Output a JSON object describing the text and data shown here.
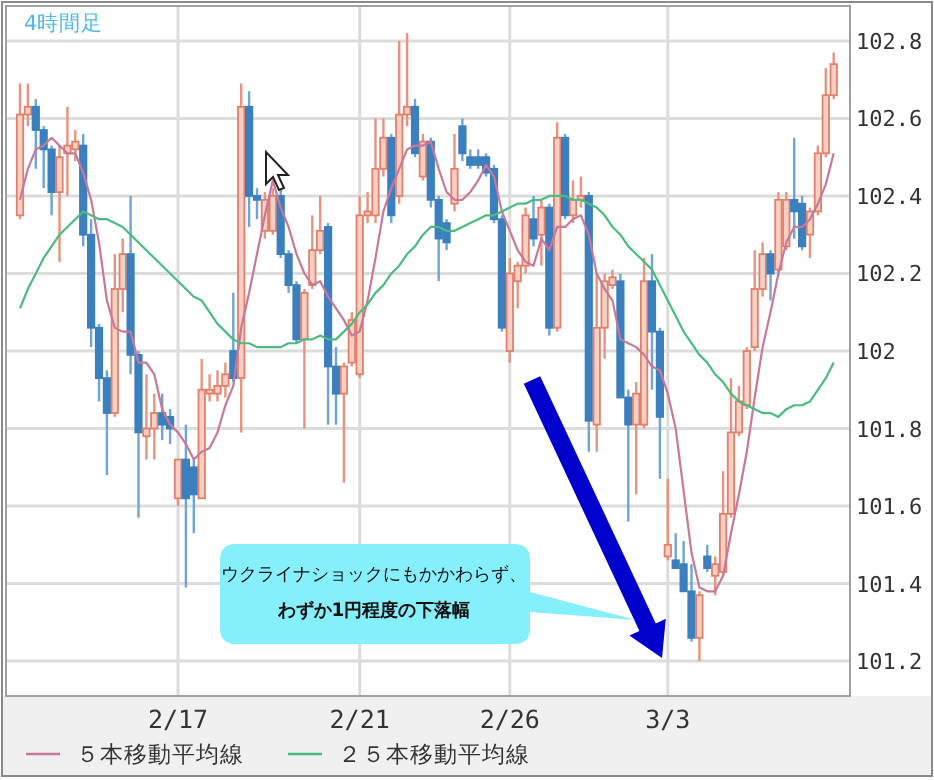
{
  "chart_data": {
    "type": "candlestick",
    "title": "4時間足",
    "categories": [
      null,
      null,
      null,
      null,
      null,
      null,
      null,
      null,
      null,
      null,
      null,
      null,
      null,
      null,
      null,
      null,
      null,
      null,
      null,
      null,
      "2/17",
      null,
      null,
      null,
      null,
      null,
      null,
      null,
      null,
      null,
      null,
      null,
      null,
      null,
      null,
      null,
      null,
      null,
      null,
      null,
      null,
      null,
      null,
      "2/21",
      null,
      null,
      null,
      null,
      null,
      null,
      null,
      null,
      null,
      null,
      null,
      null,
      null,
      null,
      null,
      null,
      null,
      null,
      "2/26",
      null,
      null,
      null,
      null,
      null,
      null,
      null,
      null,
      null,
      null,
      null,
      null,
      null,
      null,
      null,
      null,
      null,
      null,
      null,
      "3/3",
      null,
      null,
      null,
      null,
      null,
      null,
      null,
      null,
      null,
      null,
      null,
      null,
      null,
      null,
      null,
      null,
      null,
      null,
      null,
      null,
      null
    ],
    "ohlc": [
      [
        102.35,
        102.69,
        102.34,
        102.61
      ],
      [
        102.61,
        102.69,
        102.58,
        102.63
      ],
      [
        102.63,
        102.65,
        102.47,
        102.57
      ],
      [
        102.57,
        102.58,
        102.42,
        102.52
      ],
      [
        102.52,
        102.53,
        102.35,
        102.41
      ],
      [
        102.41,
        102.53,
        102.23,
        102.5
      ],
      [
        102.51,
        102.63,
        102.4,
        102.53
      ],
      [
        102.52,
        102.57,
        102.49,
        102.54
      ],
      [
        102.53,
        102.56,
        102.27,
        102.3
      ],
      [
        102.3,
        102.34,
        102.01,
        102.06
      ],
      [
        102.06,
        102.07,
        101.87,
        101.93
      ],
      [
        101.93,
        101.95,
        101.68,
        101.84
      ],
      [
        101.84,
        102.25,
        101.83,
        102.16
      ],
      [
        102.16,
        102.29,
        102.1,
        102.25
      ],
      [
        102.25,
        102.4,
        101.94,
        101.99
      ],
      [
        101.99,
        102.0,
        101.57,
        101.79
      ],
      [
        101.78,
        101.94,
        101.72,
        101.8
      ],
      [
        101.8,
        101.89,
        101.72,
        101.84
      ],
      [
        101.84,
        101.89,
        101.77,
        101.81
      ],
      [
        101.83,
        101.85,
        101.76,
        101.8
      ],
      [
        101.62,
        101.72,
        101.6,
        101.72
      ],
      [
        101.72,
        101.81,
        101.39,
        101.62
      ],
      [
        101.7,
        101.72,
        101.53,
        101.63
      ],
      [
        101.62,
        101.98,
        101.62,
        101.9
      ],
      [
        101.89,
        101.94,
        101.87,
        101.9
      ],
      [
        101.89,
        101.95,
        101.87,
        101.91
      ],
      [
        101.91,
        101.97,
        101.88,
        101.94
      ],
      [
        102.0,
        102.15,
        101.92,
        101.93
      ],
      [
        101.93,
        102.69,
        101.79,
        102.63
      ],
      [
        102.63,
        102.67,
        102.32,
        102.4
      ],
      [
        102.4,
        102.42,
        102.34,
        102.39
      ],
      [
        102.31,
        102.41,
        102.29,
        102.39
      ],
      [
        102.31,
        102.42,
        102.3,
        102.4
      ],
      [
        102.4,
        102.42,
        102.24,
        102.25
      ],
      [
        102.25,
        102.26,
        102.15,
        102.17
      ],
      [
        102.17,
        102.18,
        102.02,
        102.03
      ],
      [
        102.03,
        102.16,
        101.8,
        102.15
      ],
      [
        102.17,
        102.35,
        102.16,
        102.26
      ],
      [
        102.26,
        102.4,
        102.25,
        102.31
      ],
      [
        102.32,
        102.33,
        101.81,
        101.96
      ],
      [
        101.96,
        102.01,
        101.81,
        101.89
      ],
      [
        101.89,
        101.97,
        101.66,
        101.96
      ],
      [
        101.97,
        102.1,
        101.96,
        102.08
      ],
      [
        101.94,
        102.4,
        101.93,
        102.35
      ],
      [
        102.35,
        102.41,
        102.33,
        102.36
      ],
      [
        102.35,
        102.6,
        102.33,
        102.47
      ],
      [
        102.47,
        102.6,
        102.45,
        102.55
      ],
      [
        102.55,
        102.56,
        102.33,
        102.35
      ],
      [
        102.4,
        102.8,
        102.38,
        102.61
      ],
      [
        102.61,
        102.82,
        102.58,
        102.63
      ],
      [
        102.63,
        102.65,
        102.5,
        102.51
      ],
      [
        102.45,
        102.56,
        102.44,
        102.54
      ],
      [
        102.54,
        102.55,
        102.37,
        102.39
      ],
      [
        102.39,
        102.4,
        102.18,
        102.29
      ],
      [
        102.33,
        102.34,
        102.26,
        102.28
      ],
      [
        102.38,
        102.56,
        102.36,
        102.47
      ],
      [
        102.58,
        102.6,
        102.49,
        102.51
      ],
      [
        102.5,
        102.52,
        102.47,
        102.48
      ],
      [
        102.5,
        102.52,
        102.47,
        102.48
      ],
      [
        102.5,
        102.51,
        102.45,
        102.46
      ],
      [
        102.47,
        102.48,
        102.33,
        102.34
      ],
      [
        102.34,
        102.35,
        102.05,
        102.06
      ],
      [
        102.0,
        102.24,
        101.97,
        102.2
      ],
      [
        102.18,
        102.23,
        102.11,
        102.22
      ],
      [
        102.22,
        102.37,
        102.2,
        102.35
      ],
      [
        102.34,
        102.4,
        102.27,
        102.29
      ],
      [
        102.3,
        102.39,
        102.22,
        102.37
      ],
      [
        102.37,
        102.38,
        102.04,
        102.06
      ],
      [
        102.06,
        102.59,
        102.05,
        102.55
      ],
      [
        102.55,
        102.56,
        102.34,
        102.35
      ],
      [
        102.35,
        102.44,
        102.33,
        102.39
      ],
      [
        102.39,
        102.45,
        102.37,
        102.4
      ],
      [
        102.4,
        102.41,
        101.74,
        101.82
      ],
      [
        101.81,
        102.2,
        101.74,
        102.06
      ],
      [
        102.06,
        102.2,
        101.98,
        102.18
      ],
      [
        102.17,
        102.21,
        102.16,
        102.19
      ],
      [
        102.18,
        102.2,
        101.88,
        101.88
      ],
      [
        101.88,
        101.9,
        101.56,
        101.81
      ],
      [
        101.81,
        101.92,
        101.63,
        101.89
      ],
      [
        101.81,
        102.24,
        101.8,
        102.18
      ],
      [
        102.18,
        102.25,
        101.9,
        102.05
      ],
      [
        102.05,
        102.06,
        101.67,
        101.83
      ],
      [
        101.47,
        101.67,
        101.46,
        101.5
      ],
      [
        101.46,
        101.53,
        101.44,
        101.44
      ],
      [
        101.45,
        101.51,
        101.38,
        101.38
      ],
      [
        101.38,
        101.45,
        101.25,
        101.26
      ],
      [
        101.26,
        101.38,
        101.2,
        101.37
      ],
      [
        101.47,
        101.5,
        101.43,
        101.44
      ],
      [
        101.42,
        101.47,
        101.37,
        101.45
      ],
      [
        101.43,
        101.69,
        101.42,
        101.58
      ],
      [
        101.58,
        101.93,
        101.57,
        101.79
      ],
      [
        101.79,
        101.91,
        101.78,
        101.87
      ],
      [
        101.86,
        102.01,
        101.85,
        102.0
      ],
      [
        102.01,
        102.26,
        102.0,
        102.16
      ],
      [
        102.16,
        102.28,
        102.14,
        102.25
      ],
      [
        102.25,
        102.26,
        102.13,
        102.2
      ],
      [
        102.21,
        102.41,
        102.2,
        102.39
      ],
      [
        102.27,
        102.41,
        102.26,
        102.39
      ],
      [
        102.39,
        102.55,
        102.29,
        102.36
      ],
      [
        102.38,
        102.4,
        102.26,
        102.27
      ],
      [
        102.3,
        102.37,
        102.24,
        102.36
      ],
      [
        102.36,
        102.53,
        102.35,
        102.51
      ],
      [
        102.51,
        102.73,
        102.5,
        102.66
      ],
      [
        102.66,
        102.77,
        102.65,
        102.74
      ]
    ],
    "series": [
      {
        "type": "line",
        "name": "５本移動平均線",
        "color": "#c8789a",
        "values": [
          102.39,
          102.47,
          102.52,
          102.53,
          102.55,
          102.53,
          102.51,
          102.51,
          102.46,
          102.39,
          102.28,
          102.13,
          102.06,
          102.05,
          102.05,
          101.97,
          101.97,
          101.94,
          101.85,
          101.81,
          101.79,
          101.76,
          101.72,
          101.74,
          101.75,
          101.79,
          101.86,
          101.91,
          102.06,
          102.15,
          102.25,
          102.35,
          102.44,
          102.37,
          102.32,
          102.25,
          102.2,
          102.17,
          102.18,
          102.14,
          102.11,
          102.08,
          102.04,
          102.05,
          102.13,
          102.24,
          102.36,
          102.42,
          102.47,
          102.52,
          102.53,
          102.53,
          102.54,
          102.47,
          102.41,
          102.39,
          102.39,
          102.41,
          102.44,
          102.48,
          102.45,
          102.36,
          102.31,
          102.26,
          102.23,
          102.22,
          102.29,
          102.26,
          102.32,
          102.32,
          102.34,
          102.35,
          102.3,
          102.2,
          102.16,
          102.13,
          102.03,
          102.02,
          102.01,
          101.99,
          101.96,
          101.95,
          101.89,
          101.8,
          101.64,
          101.48,
          101.39,
          101.38,
          101.38,
          101.42,
          101.53,
          101.63,
          101.74,
          101.88,
          102.01,
          102.1,
          102.2,
          102.28,
          102.32,
          102.32,
          102.34,
          102.38,
          102.43,
          102.51
        ]
      },
      {
        "type": "line",
        "name": "２５本移動平均線",
        "color": "#4cbb7f",
        "values": [
          102.11,
          102.16,
          102.2,
          102.24,
          102.27,
          102.3,
          102.32,
          102.34,
          102.36,
          102.35,
          102.34,
          102.34,
          102.33,
          102.32,
          102.3,
          102.28,
          102.26,
          102.24,
          102.22,
          102.2,
          102.18,
          102.16,
          102.14,
          102.13,
          102.1,
          102.07,
          102.05,
          102.03,
          102.02,
          102.02,
          102.01,
          102.01,
          102.01,
          102.01,
          102.02,
          102.02,
          102.03,
          102.03,
          102.04,
          102.03,
          102.03,
          102.05,
          102.07,
          102.1,
          102.12,
          102.15,
          102.17,
          102.2,
          102.22,
          102.25,
          102.27,
          102.3,
          102.32,
          102.32,
          102.31,
          102.31,
          102.32,
          102.33,
          102.34,
          102.35,
          102.35,
          102.36,
          102.37,
          102.38,
          102.38,
          102.39,
          102.39,
          102.4,
          102.4,
          102.4,
          102.39,
          102.39,
          102.38,
          102.37,
          102.35,
          102.32,
          102.3,
          102.27,
          102.25,
          102.23,
          102.21,
          102.17,
          102.13,
          102.09,
          102.05,
          102.02,
          101.99,
          101.97,
          101.94,
          101.92,
          101.89,
          101.87,
          101.86,
          101.85,
          101.84,
          101.84,
          101.83,
          101.85,
          101.86,
          101.86,
          101.87,
          101.9,
          101.93,
          101.97
        ]
      }
    ],
    "ylim": [
      101.11,
      102.89
    ],
    "yticks": [
      101.2,
      101.4,
      101.6,
      101.8,
      102,
      102.2,
      102.4,
      102.6,
      102.8
    ],
    "grid": true,
    "legend": "bottom",
    "annotations": [
      "ウクライナショックにもかかわらず、",
      "わずか1円程度の下落幅"
    ]
  }
}
